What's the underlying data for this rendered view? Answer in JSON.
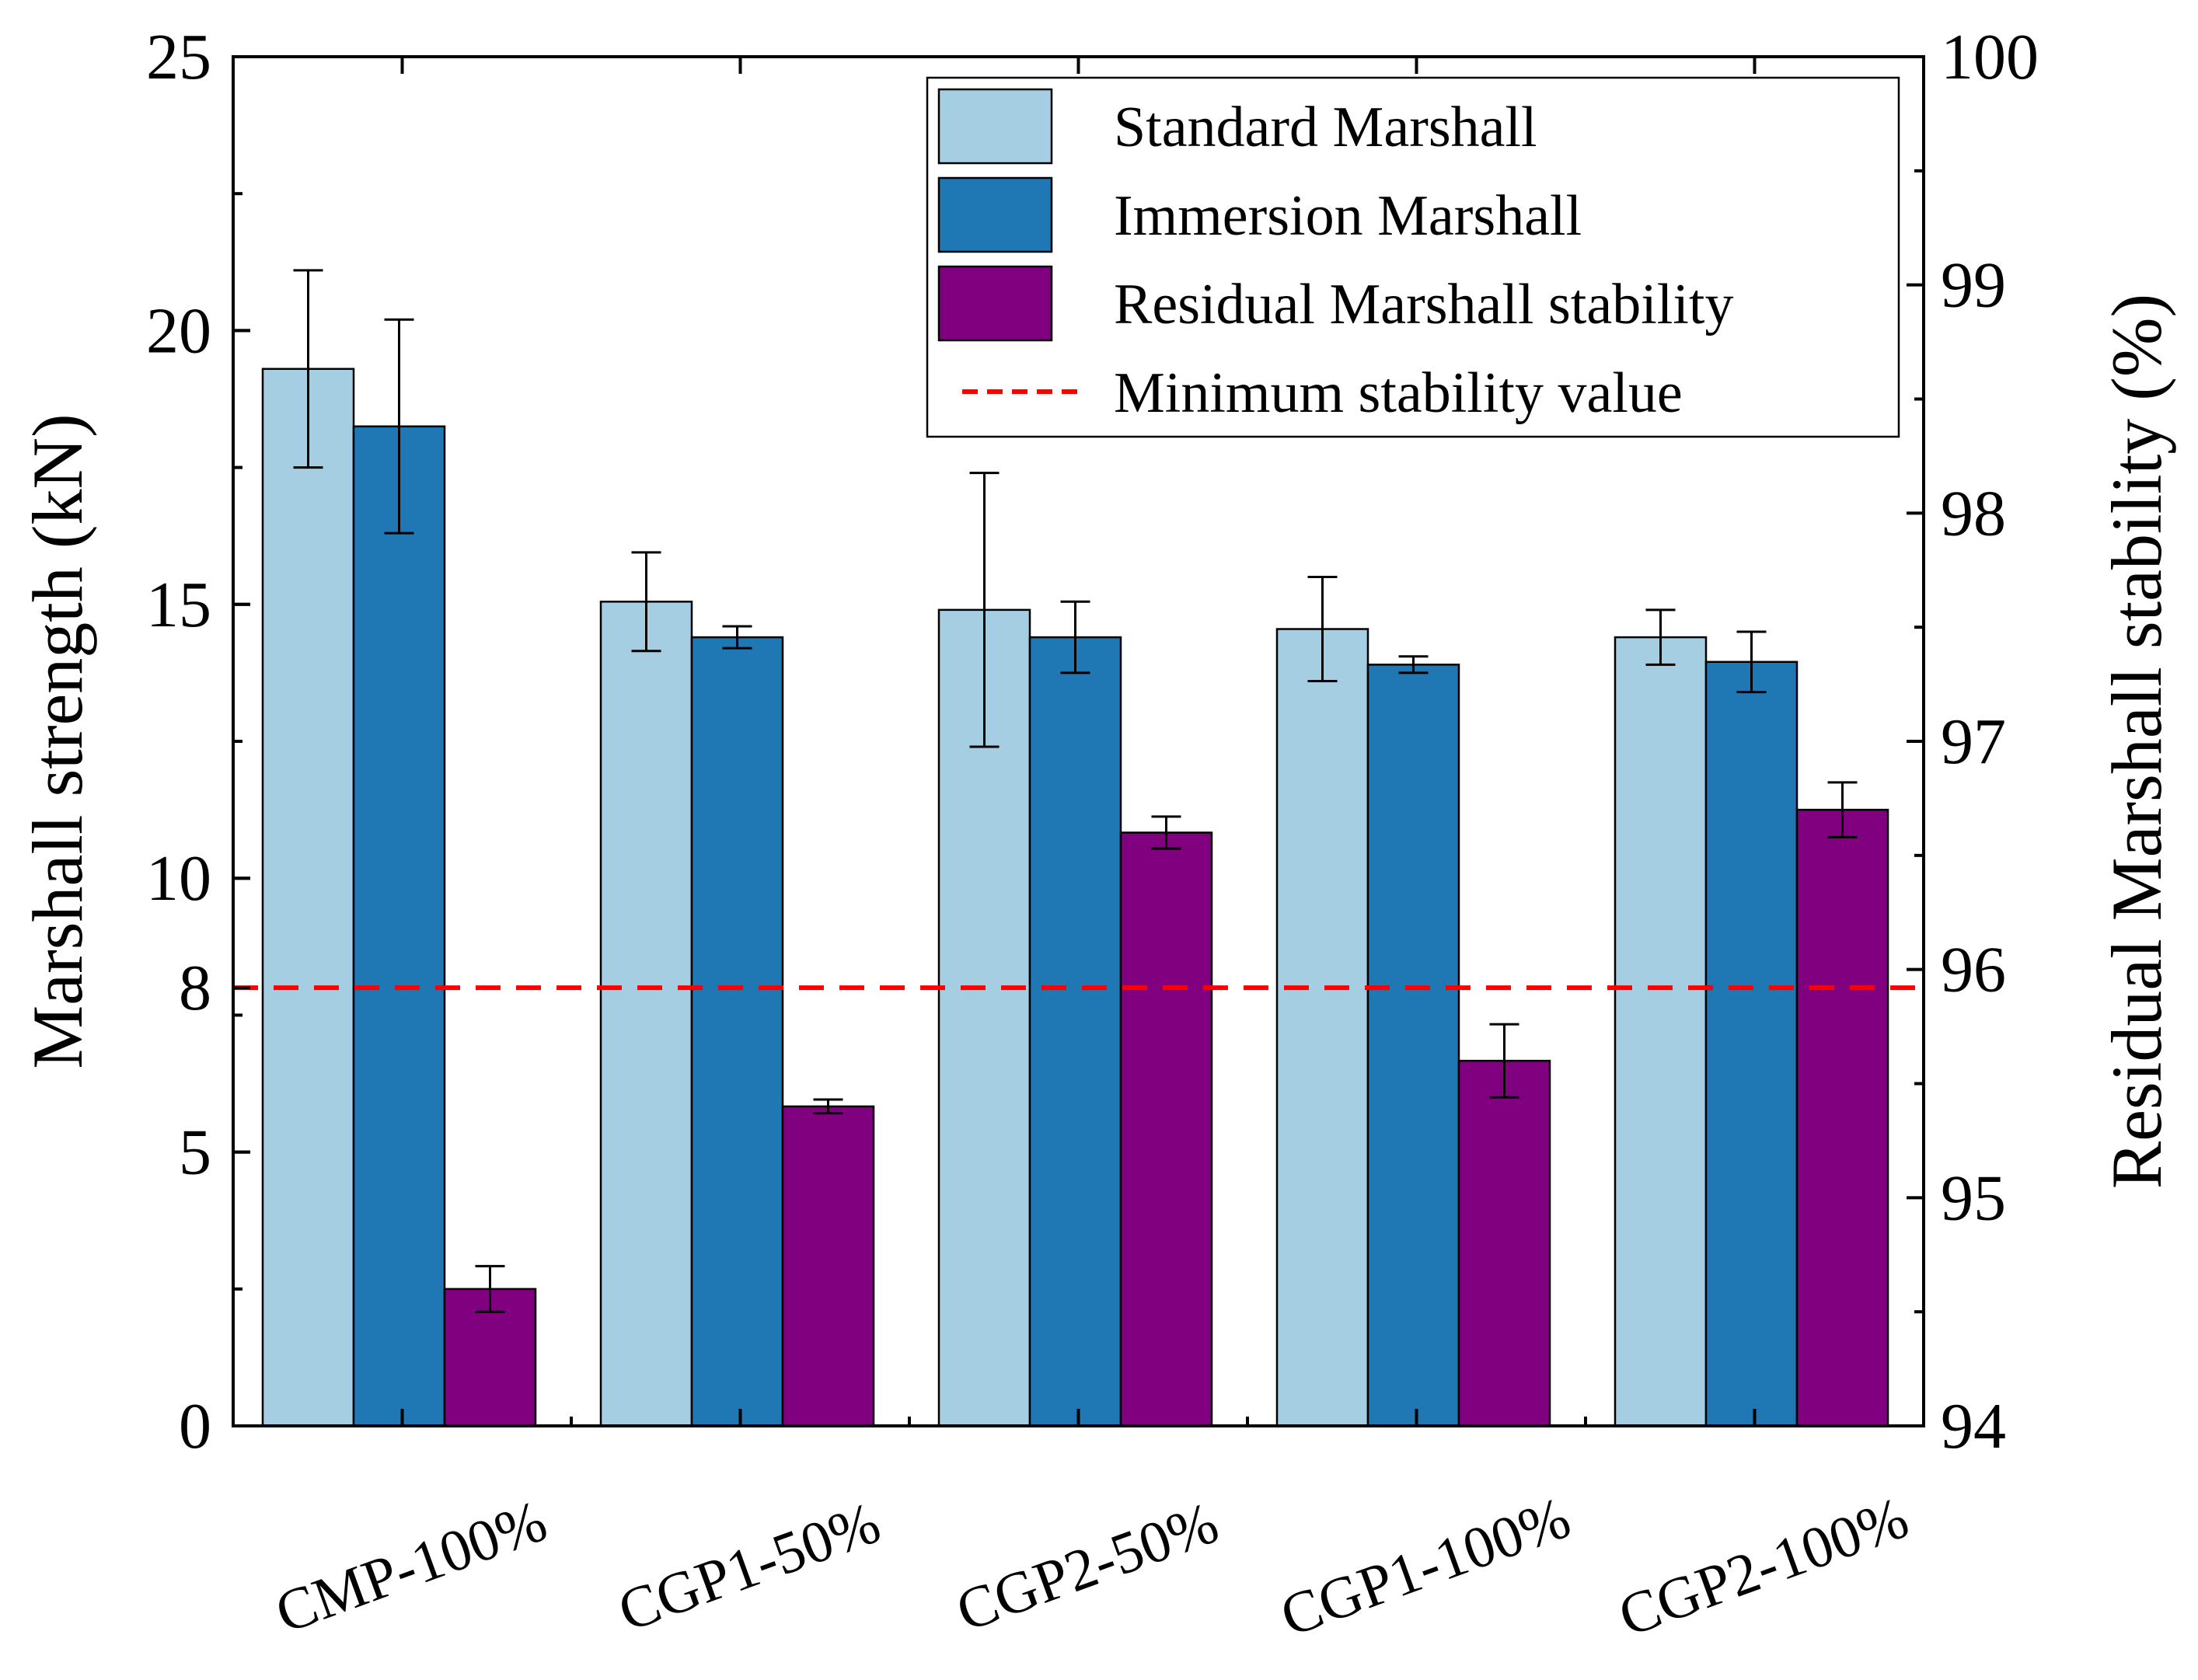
{
  "chart_data": {
    "type": "bar",
    "categories": [
      "CMP-100%",
      "CGP1-50%",
      "CGP2-50%",
      "CGP1-100%",
      "CGP2-100%"
    ],
    "series": [
      {
        "name": "Standard Marshall",
        "axis": "left",
        "color": "#a6cee3",
        "values": [
          19.3,
          15.05,
          14.9,
          14.55,
          14.4
        ],
        "errors": [
          1.8,
          0.9,
          2.5,
          0.95,
          0.5
        ]
      },
      {
        "name": "Immersion Marshall",
        "axis": "left",
        "color": "#1f78b4",
        "values": [
          18.25,
          14.4,
          14.4,
          13.9,
          13.95
        ],
        "errors": [
          1.95,
          0.2,
          0.65,
          0.15,
          0.55
        ]
      },
      {
        "name": "Residual Marshall stability",
        "axis": "right",
        "color": "#800080",
        "values": [
          94.6,
          95.4,
          96.6,
          95.6,
          96.7
        ],
        "errors": [
          0.1,
          0.03,
          0.07,
          0.16,
          0.12
        ]
      }
    ],
    "reference_line": {
      "name": "Minimum stability value",
      "axis": "left",
      "value": 8,
      "color": "#ff0000"
    },
    "ylabel": "Marshall strength (kN)",
    "y2label": "Residual Marshall stability (%)",
    "ylim": [
      0,
      25
    ],
    "y2lim": [
      94,
      100
    ],
    "yticks": [
      "0",
      "5",
      "8",
      "10",
      "15",
      "20",
      "25"
    ],
    "y2ticks": [
      "94",
      "95",
      "96",
      "97",
      "98",
      "99",
      "100"
    ],
    "legend_position": "top-right"
  }
}
